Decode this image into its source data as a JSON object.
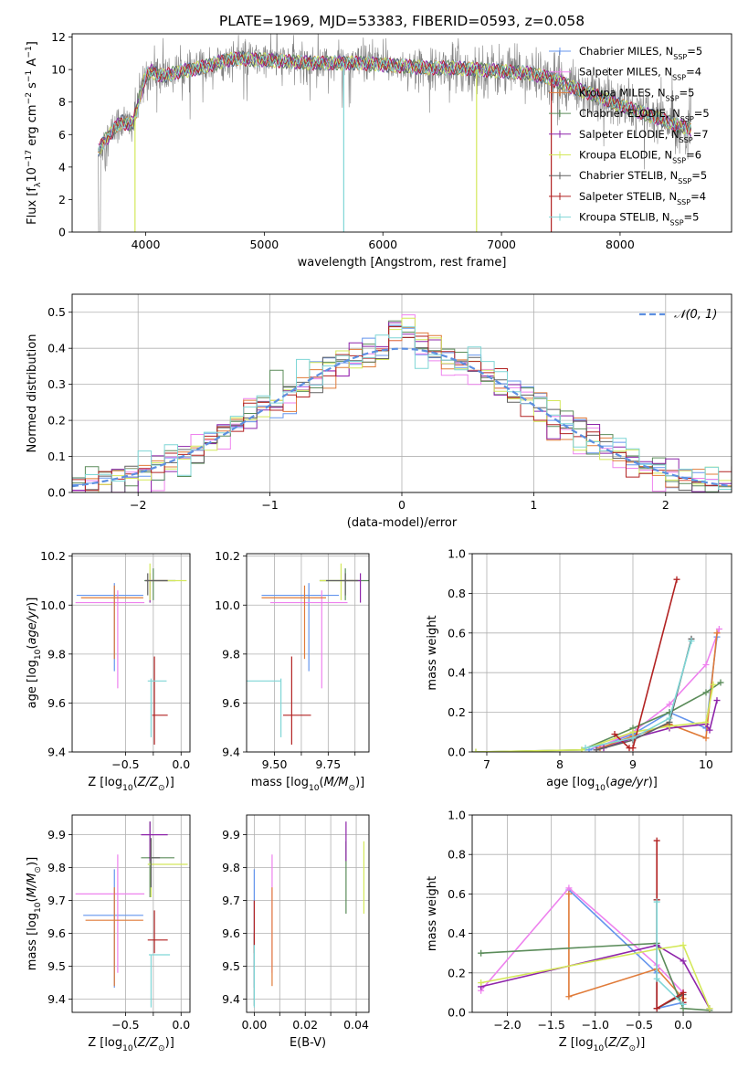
{
  "figure": {
    "title": "PLATE=1969, MJD=53383, FIBERID=0593, z=0.058"
  },
  "colors": {
    "series": [
      "#6495ed",
      "#ee82ee",
      "#e07b39",
      "#5b8c5a",
      "#8e24aa",
      "#d4e85a",
      "#606060",
      "#b22222",
      "#7fd6d6"
    ],
    "data": "#808080",
    "gaussian": "#5c8fe0",
    "grid": "#b0b0b0"
  },
  "chart_data": [
    {
      "id": "spectrum",
      "type": "line",
      "title": "PLATE=1969, MJD=53383, FIBERID=0593, z=0.058",
      "xlabel": "wavelength [Angstrom, rest frame]",
      "ylabel": "Flux [f$_\\lambda$10$^{-17}$ erg cm$^{-2}$ s$^{-1}$ A$^{-1}$]",
      "xlim": [
        3380,
        8940
      ],
      "ylim": [
        0,
        12.2
      ],
      "xticks": [
        4000,
        5000,
        6000,
        7000,
        8000
      ],
      "yticks": [
        0,
        2,
        4,
        6,
        8,
        10,
        12
      ],
      "grid": false,
      "legend_position": "top-right",
      "legend": [
        {
          "label": "Chabrier MILES, N",
          "sub": "SSP",
          "suffix": "=5"
        },
        {
          "label": "Salpeter MILES, N",
          "sub": "SSP",
          "suffix": "=4"
        },
        {
          "label": "Kroupa MILES, N",
          "sub": "SSP",
          "suffix": "=5"
        },
        {
          "label": "Chabrier ELODIE, N",
          "sub": "SSP",
          "suffix": "=5"
        },
        {
          "label": "Salpeter ELODIE, N",
          "sub": "SSP",
          "suffix": "=7"
        },
        {
          "label": "Kroupa ELODIE, N",
          "sub": "SSP",
          "suffix": "=6"
        },
        {
          "label": "Chabrier STELIB, N",
          "sub": "SSP",
          "suffix": "=5"
        },
        {
          "label": "Salpeter STELIB, N",
          "sub": "SSP",
          "suffix": "=4"
        },
        {
          "label": "Kroupa STELIB, N",
          "sub": "SSP",
          "suffix": "=5"
        }
      ],
      "model_continuum": {
        "x": [
          3600,
          3650,
          3700,
          3750,
          3800,
          3850,
          3900,
          3950,
          4000,
          4050,
          4100,
          4150,
          4200,
          4300,
          4400,
          4500,
          4600,
          4700,
          4800,
          4900,
          5000,
          5200,
          5400,
          5600,
          5800,
          6000,
          6200,
          6400,
          6600,
          6800,
          7000,
          7200,
          7400,
          7600,
          7800,
          8000,
          8200,
          8400,
          8600
        ],
        "y": [
          5.0,
          5.6,
          6.0,
          6.5,
          6.8,
          6.6,
          6.8,
          8.3,
          9.6,
          9.9,
          9.7,
          9.6,
          9.7,
          9.9,
          10.0,
          10.2,
          10.4,
          10.6,
          10.7,
          10.6,
          10.6,
          10.5,
          10.4,
          10.4,
          10.4,
          10.3,
          10.2,
          10.1,
          10.1,
          10.0,
          9.9,
          9.8,
          9.5,
          8.9,
          8.4,
          7.8,
          7.3,
          6.8,
          6.3
        ]
      },
      "model_dropouts": [
        {
          "x": 3910,
          "color_index": 5
        },
        {
          "x": 5670,
          "color_index": 8
        },
        {
          "x": 6790,
          "color_index": 5
        },
        {
          "x": 7420,
          "color_index": 7
        }
      ]
    },
    {
      "id": "residuals",
      "type": "step",
      "xlabel": "(data-model)/error",
      "ylabel": "Normed distribution",
      "xlim": [
        -2.5,
        2.5
      ],
      "ylim": [
        0,
        0.55
      ],
      "xticks": [
        -2,
        -1,
        0,
        1,
        2
      ],
      "yticks": [
        0.0,
        0.1,
        0.2,
        0.3,
        0.4,
        0.5
      ],
      "grid": true,
      "legend_position": "top-right",
      "legend": [
        {
          "label": "𝒩(0, 1)"
        }
      ],
      "bin_width": 0.1,
      "gaussian_sigma": 1
    },
    {
      "id": "age-vs-Z",
      "type": "errorbar",
      "xlabel": "Z [log$_{10}$($Z/Z_\\odot$)]",
      "ylabel": "age  [log$_{10}$($age/yr$)]",
      "xlim": [
        -0.98,
        0.08
      ],
      "ylim": [
        9.4,
        10.21
      ],
      "xticks": [
        -0.5,
        -0.25,
        0.0
      ],
      "xtick_labels": [
        "−0.5",
        "",
        "0.0"
      ],
      "yticks": [
        9.4,
        9.6,
        9.8,
        10.0,
        10.2
      ],
      "grid": true,
      "points": [
        {
          "s": 0,
          "x": -0.6,
          "y": 10.04,
          "xe": [
            0.34,
            0.26
          ],
          "ye": [
            0.31,
            0.05
          ]
        },
        {
          "s": 1,
          "x": -0.57,
          "y": 10.01,
          "xe": [
            0.38,
            0.24
          ],
          "ye": [
            0.35,
            0.05
          ]
        },
        {
          "s": 2,
          "x": -0.6,
          "y": 10.03,
          "xe": [
            0.3,
            0.26
          ],
          "ye": [
            0.25,
            0.05
          ]
        },
        {
          "s": 3,
          "x": -0.25,
          "y": 10.1,
          "xe": [
            0.08,
            0.2
          ],
          "ye": [
            0.08,
            0.05
          ]
        },
        {
          "s": 4,
          "x": -0.28,
          "y": 10.1,
          "xe": [
            0.04,
            0.16
          ],
          "ye": [
            0.09,
            0.03
          ]
        },
        {
          "s": 5,
          "x": -0.28,
          "y": 10.1,
          "xe": [
            0.03,
            0.33
          ],
          "ye": [
            0.08,
            0.07
          ]
        },
        {
          "s": 6,
          "x": -0.3,
          "y": 10.1,
          "xe": [
            0.02,
            0.18
          ],
          "ye": [
            0.06,
            0.03
          ]
        },
        {
          "s": 7,
          "x": -0.24,
          "y": 9.55,
          "xe": [
            0.02,
            0.12
          ],
          "ye": [
            0.12,
            0.24
          ]
        },
        {
          "s": 8,
          "x": -0.27,
          "y": 9.69,
          "xe": [
            0.03,
            0.14
          ],
          "ye": [
            0.23,
            0.01
          ]
        }
      ]
    },
    {
      "id": "age-vs-mass",
      "type": "errorbar",
      "xlabel": "mass [log$_{10}$($M/M_\\odot$)]",
      "ylabel": "",
      "xlim": [
        9.37,
        9.94
      ],
      "ylim": [
        9.4,
        10.21
      ],
      "xticks": [
        9.5,
        9.625,
        9.75,
        9.875
      ],
      "xtick_labels": [
        "9.50",
        "",
        "9.75",
        ""
      ],
      "yticks": [
        9.4,
        9.6,
        9.8,
        10.0,
        10.2
      ],
      "grid": true,
      "points": [
        {
          "s": 0,
          "x": 9.66,
          "y": 10.04,
          "xe": [
            0.22,
            0.14
          ],
          "ye": [
            0.31,
            0.05
          ]
        },
        {
          "s": 1,
          "x": 9.72,
          "y": 10.01,
          "xe": [
            0.24,
            0.12
          ],
          "ye": [
            0.35,
            0.05
          ]
        },
        {
          "s": 2,
          "x": 9.64,
          "y": 10.03,
          "xe": [
            0.2,
            0.1
          ],
          "ye": [
            0.25,
            0.05
          ]
        },
        {
          "s": 3,
          "x": 9.83,
          "y": 10.1,
          "xe": [
            0.12,
            0.11
          ],
          "ye": [
            0.08,
            0.05
          ]
        },
        {
          "s": 4,
          "x": 9.9,
          "y": 10.1,
          "xe": [
            0.08,
            0.0
          ],
          "ye": [
            0.09,
            0.03
          ]
        },
        {
          "s": 5,
          "x": 9.81,
          "y": 10.1,
          "xe": [
            0.1,
            0.07
          ],
          "ye": [
            0.08,
            0.07
          ]
        },
        {
          "s": 6,
          "x": 9.83,
          "y": 10.1,
          "xe": [
            0.09,
            0.06
          ],
          "ye": [
            0.06,
            0.03
          ]
        },
        {
          "s": 7,
          "x": 9.58,
          "y": 9.55,
          "xe": [
            0.04,
            0.09
          ],
          "ye": [
            0.12,
            0.24
          ]
        },
        {
          "s": 8,
          "x": 9.53,
          "y": 9.69,
          "xe": [
            0.16,
            0.0
          ],
          "ye": [
            0.23,
            0.01
          ]
        }
      ]
    },
    {
      "id": "massweight-vs-age",
      "type": "line",
      "xlabel": "age  [log$_{10}$($age/yr$)]",
      "ylabel": "mass weight",
      "xlim": [
        6.8,
        10.35
      ],
      "ylim": [
        0,
        1.0
      ],
      "xticks": [
        7,
        8,
        9,
        10
      ],
      "yticks": [
        0.0,
        0.2,
        0.4,
        0.6,
        0.8,
        1.0
      ],
      "grid": true,
      "series": [
        {
          "s": 0,
          "x": [
            8.4,
            9.0,
            9.5,
            10.0,
            10.15
          ],
          "y": [
            0.01,
            0.09,
            0.2,
            0.12,
            0.58
          ]
        },
        {
          "s": 1,
          "x": [
            8.5,
            9.0,
            9.5,
            10.0,
            10.18
          ],
          "y": [
            0.02,
            0.1,
            0.24,
            0.44,
            0.62
          ]
        },
        {
          "s": 2,
          "x": [
            8.55,
            9.0,
            9.5,
            10.0,
            10.15
          ],
          "y": [
            0.02,
            0.08,
            0.14,
            0.07,
            0.6
          ]
        },
        {
          "s": 3,
          "x": [
            6.85,
            8.3,
            9.0,
            9.5,
            10.0,
            10.2
          ],
          "y": [
            0.0,
            0.01,
            0.12,
            0.2,
            0.3,
            0.35
          ]
        },
        {
          "s": 4,
          "x": [
            8.6,
            9.0,
            9.5,
            10.0,
            10.05,
            10.15
          ],
          "y": [
            0.02,
            0.07,
            0.12,
            0.14,
            0.11,
            0.26
          ]
        },
        {
          "s": 5,
          "x": [
            6.85,
            8.3,
            9.0,
            9.5,
            10.0,
            10.1
          ],
          "y": [
            0.0,
            0.01,
            0.1,
            0.13,
            0.15,
            0.34
          ]
        },
        {
          "s": 6,
          "x": [
            8.5,
            9.0,
            9.5,
            9.8
          ],
          "y": [
            0.01,
            0.06,
            0.15,
            0.57
          ]
        },
        {
          "s": 7,
          "x": [
            8.75,
            8.95,
            9.0,
            9.6
          ],
          "y": [
            0.09,
            0.02,
            0.02,
            0.87
          ]
        },
        {
          "s": 8,
          "x": [
            8.35,
            9.0,
            9.5,
            9.8
          ],
          "y": [
            0.02,
            0.07,
            0.17,
            0.56
          ]
        }
      ]
    },
    {
      "id": "mass-vs-Z",
      "type": "errorbar",
      "xlabel": "Z [log$_{10}$($Z/Z_\\odot$)]",
      "ylabel": "mass [log$_{10}$($M/M_\\odot$)]",
      "xlim": [
        -0.98,
        0.08
      ],
      "ylim": [
        9.36,
        9.96
      ],
      "xticks": [
        -0.5,
        -0.25,
        0.0
      ],
      "xtick_labels": [
        "−0.5",
        "",
        "0.0"
      ],
      "yticks": [
        9.4,
        9.5,
        9.6,
        9.7,
        9.8,
        9.9
      ],
      "grid": true,
      "points": [
        {
          "s": 0,
          "x": -0.6,
          "y": 9.655,
          "xe": [
            0.28,
            0.26
          ],
          "ye": [
            0.22,
            0.14
          ]
        },
        {
          "s": 1,
          "x": -0.57,
          "y": 9.72,
          "xe": [
            0.38,
            0.24
          ],
          "ye": [
            0.24,
            0.12
          ]
        },
        {
          "s": 2,
          "x": -0.6,
          "y": 9.64,
          "xe": [
            0.26,
            0.26
          ],
          "ye": [
            0.2,
            0.1
          ]
        },
        {
          "s": 3,
          "x": -0.28,
          "y": 9.83,
          "xe": [
            0.08,
            0.22
          ],
          "ye": [
            0.12,
            0.11
          ]
        },
        {
          "s": 4,
          "x": -0.28,
          "y": 9.9,
          "xe": [
            0.08,
            0.16
          ],
          "ye": [
            0.08,
            0.04
          ]
        },
        {
          "s": 5,
          "x": -0.27,
          "y": 9.81,
          "xe": [
            0.03,
            0.33
          ],
          "ye": [
            0.1,
            0.07
          ]
        },
        {
          "s": 6,
          "x": -0.27,
          "y": 9.83,
          "xe": [
            0.02,
            0.08
          ],
          "ye": [
            0.09,
            0.06
          ]
        },
        {
          "s": 7,
          "x": -0.24,
          "y": 9.58,
          "xe": [
            0.06,
            0.12
          ],
          "ye": [
            0.04,
            0.09
          ]
        },
        {
          "s": 8,
          "x": -0.27,
          "y": 9.535,
          "xe": [
            0.02,
            0.17
          ],
          "ye": [
            0.16,
            0.0
          ]
        }
      ]
    },
    {
      "id": "mass-vs-ebv",
      "type": "errorbar",
      "xlabel": "E(B-V)",
      "ylabel": "",
      "xlim": [
        -0.003,
        0.045
      ],
      "ylim": [
        9.36,
        9.96
      ],
      "xticks": [
        0.0,
        0.01,
        0.02,
        0.03,
        0.04
      ],
      "xtick_labels": [
        "0.00",
        "",
        "0.02",
        "",
        "0.04"
      ],
      "yticks": [
        9.4,
        9.5,
        9.6,
        9.7,
        9.8,
        9.9
      ],
      "grid": true,
      "points": [
        {
          "s": 0,
          "x": 0.0,
          "y": 9.655,
          "xe": [
            0,
            0
          ],
          "ye": [
            0.22,
            0.14
          ]
        },
        {
          "s": 1,
          "x": 0.007,
          "y": 9.72,
          "xe": [
            0,
            0
          ],
          "ye": [
            0.24,
            0.12
          ]
        },
        {
          "s": 2,
          "x": 0.007,
          "y": 9.64,
          "xe": [
            0,
            0
          ],
          "ye": [
            0.2,
            0.1
          ]
        },
        {
          "s": 3,
          "x": 0.036,
          "y": 9.83,
          "xe": [
            0,
            0
          ],
          "ye": [
            0.17,
            0.05
          ]
        },
        {
          "s": 4,
          "x": 0.036,
          "y": 9.9,
          "xe": [
            0,
            0
          ],
          "ye": [
            0.08,
            0.04
          ]
        },
        {
          "s": 5,
          "x": 0.043,
          "y": 9.81,
          "xe": [
            0,
            0
          ],
          "ye": [
            0.15,
            0.07
          ]
        },
        {
          "s": 6,
          "x": 0.0,
          "y": 9.5,
          "xe": [
            0,
            0
          ],
          "ye": [
            0.12,
            0.1
          ]
        },
        {
          "s": 7,
          "x": 0.0,
          "y": 9.58,
          "xe": [
            0,
            0
          ],
          "ye": [
            0.04,
            0.12
          ]
        },
        {
          "s": 8,
          "x": 0.0,
          "y": 9.535,
          "xe": [
            0,
            0
          ],
          "ye": [
            0.16,
            0.03
          ]
        }
      ]
    },
    {
      "id": "massweight-vs-Z",
      "type": "line",
      "xlabel": "Z [log$_{10}$($Z/Z_\\odot$)]",
      "ylabel": "mass weight",
      "xlim": [
        -2.4,
        0.55
      ],
      "ylim": [
        0,
        1.0
      ],
      "xticks": [
        -2.0,
        -1.5,
        -1.0,
        -0.5,
        0.0
      ],
      "xtick_labels": [
        "−2.0",
        "−1.5",
        "−1.0",
        "−0.5",
        "0.0"
      ],
      "yticks": [
        0.0,
        0.2,
        0.4,
        0.6,
        0.8,
        1.0
      ],
      "grid": true,
      "series": [
        {
          "s": 0,
          "x": [
            -1.3,
            -0.3,
            -0.3,
            0.0
          ],
          "y": [
            0.62,
            0.2,
            0.02,
            0.05
          ]
        },
        {
          "s": 1,
          "x": [
            -2.3,
            -1.3,
            -0.3,
            0.0,
            0.0
          ],
          "y": [
            0.11,
            0.63,
            0.24,
            0.1,
            0.04
          ]
        },
        {
          "s": 2,
          "x": [
            -1.3,
            -1.3,
            -0.3,
            0.0
          ],
          "y": [
            0.6,
            0.08,
            0.22,
            0.07
          ]
        },
        {
          "s": 3,
          "x": [
            -2.3,
            -0.3,
            0.0,
            0.3
          ],
          "y": [
            0.3,
            0.35,
            0.02,
            0.01
          ]
        },
        {
          "s": 4,
          "x": [
            -2.3,
            -0.3,
            0.0,
            0.3
          ],
          "y": [
            0.13,
            0.34,
            0.26,
            0.02
          ]
        },
        {
          "s": 5,
          "x": [
            -2.3,
            -0.3,
            0.0,
            0.3
          ],
          "y": [
            0.15,
            0.32,
            0.34,
            0.02
          ]
        },
        {
          "s": 6,
          "x": [
            -0.3,
            -0.3,
            0.0,
            0.0
          ],
          "y": [
            0.57,
            0.02,
            0.09,
            0.05
          ]
        },
        {
          "s": 7,
          "x": [
            -0.3,
            -0.3,
            -0.3,
            0.0,
            0.0
          ],
          "y": [
            0.87,
            0.57,
            0.02,
            0.1,
            0.05
          ]
        },
        {
          "s": 8,
          "x": [
            -0.3,
            -0.3,
            0.0
          ],
          "y": [
            0.56,
            0.17,
            0.04
          ]
        }
      ]
    }
  ]
}
